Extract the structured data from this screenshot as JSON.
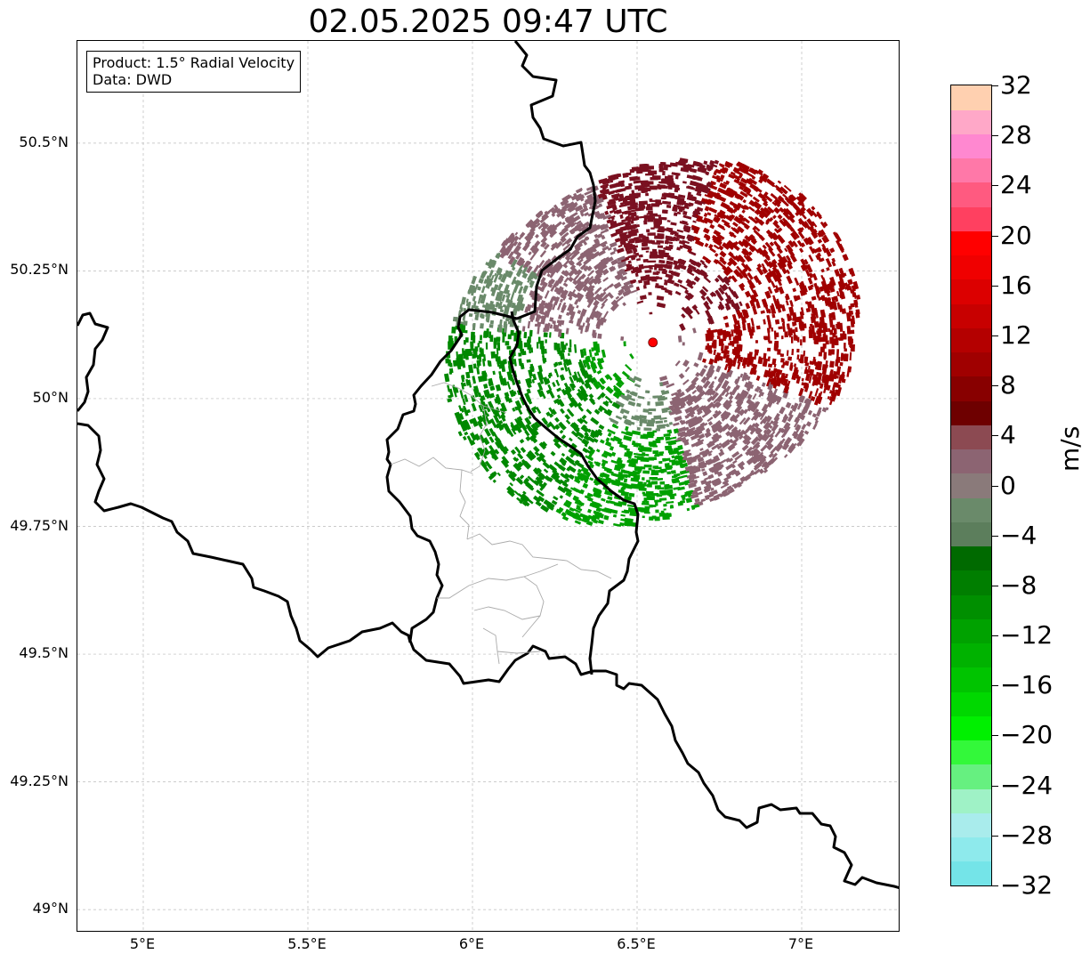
{
  "title": "02.05.2025 09:47 UTC",
  "info_box": {
    "product": "Product: 1.5° Radial Velocity",
    "data_source": "Data: DWD"
  },
  "map": {
    "lon_range": [
      4.8,
      7.3
    ],
    "lat_range": [
      48.955,
      50.7
    ],
    "lon_ticks": [
      "5°E",
      "5.5°E",
      "6°E",
      "6.5°E",
      "7°E"
    ],
    "lat_ticks": [
      "49°N",
      "49.25°N",
      "49.5°N",
      "49.75°N",
      "50°N",
      "50.25°N",
      "50.5°N"
    ],
    "grid": "dashed-light",
    "radar_site": {
      "lon": 6.548,
      "lat": 50.11,
      "marker_color": "#ff0000",
      "marker": "red-dot"
    }
  },
  "colorbar": {
    "unit": "m/s",
    "min": -32,
    "max": 32,
    "step": 4,
    "tick_labels": [
      "32",
      "28",
      "24",
      "20",
      "16",
      "12",
      "8",
      "4",
      "0",
      "−4",
      "−8",
      "−12",
      "−16",
      "−20",
      "−24",
      "−28",
      "−32"
    ],
    "colors_bottom_to_top": [
      "#74e4e8",
      "#8eeaec",
      "#a9ecec",
      "#9ff2c6",
      "#66f080",
      "#33f83a",
      "#00f000",
      "#00d800",
      "#00c400",
      "#00b200",
      "#00a200",
      "#008f00",
      "#007e00",
      "#006a00",
      "#5c7e5c",
      "#6a8a6a",
      "#8a7a7a",
      "#8c6472",
      "#8c4a52",
      "#6e0000",
      "#880000",
      "#a00000",
      "#b40000",
      "#c80000",
      "#dc0000",
      "#f00000",
      "#ff0000",
      "#ff4060",
      "#ff5a80",
      "#ff78a8",
      "#ff88d0",
      "#ffa8c8",
      "#ffd0b0"
    ]
  },
  "radar_colors": {
    "strong_inbound": "#008800",
    "inbound": "#00a000",
    "weak_inbound": "#6a8a6a",
    "weak_outbound": "#8c6472",
    "outbound": "#7a1020",
    "strong_outbound": "#a00000"
  }
}
